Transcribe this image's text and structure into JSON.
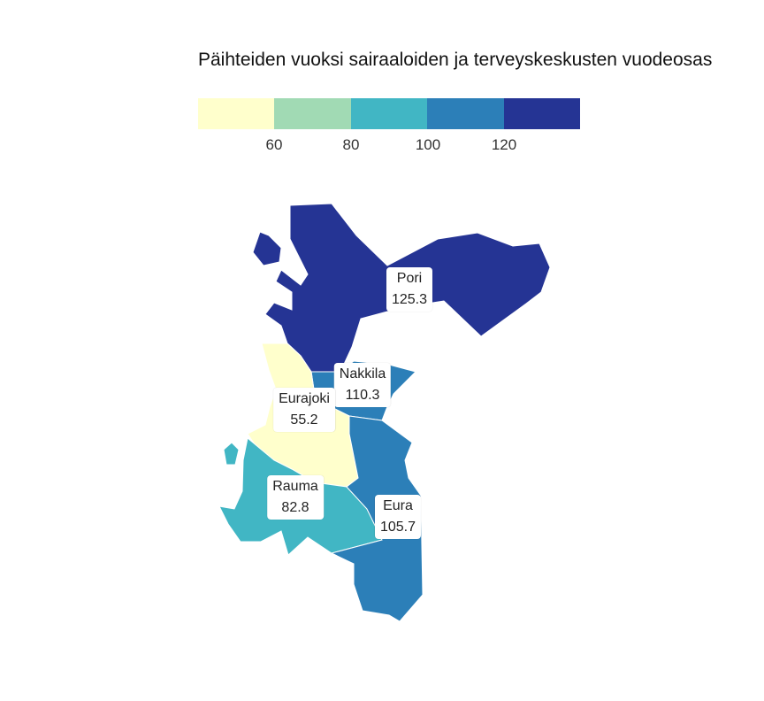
{
  "title": "Päihteiden vuoksi sairaaloiden ja terveyskeskusten vuodeosas",
  "legend": {
    "colors": [
      "#ffffcc",
      "#a1dab4",
      "#41b6c4",
      "#2c7fb8",
      "#253494"
    ],
    "ticks": [
      "60",
      "80",
      "100",
      "120"
    ]
  },
  "regions": [
    {
      "name": "Pori",
      "value": "125.3",
      "color": "#253494"
    },
    {
      "name": "Nakkila",
      "value": "110.3",
      "color": "#2c7fb8"
    },
    {
      "name": "Eurajoki",
      "value": "55.2",
      "color": "#ffffcc"
    },
    {
      "name": "Rauma",
      "value": "82.8",
      "color": "#41b6c4"
    },
    {
      "name": "Eura",
      "value": "105.7",
      "color": "#2c7fb8"
    }
  ]
}
